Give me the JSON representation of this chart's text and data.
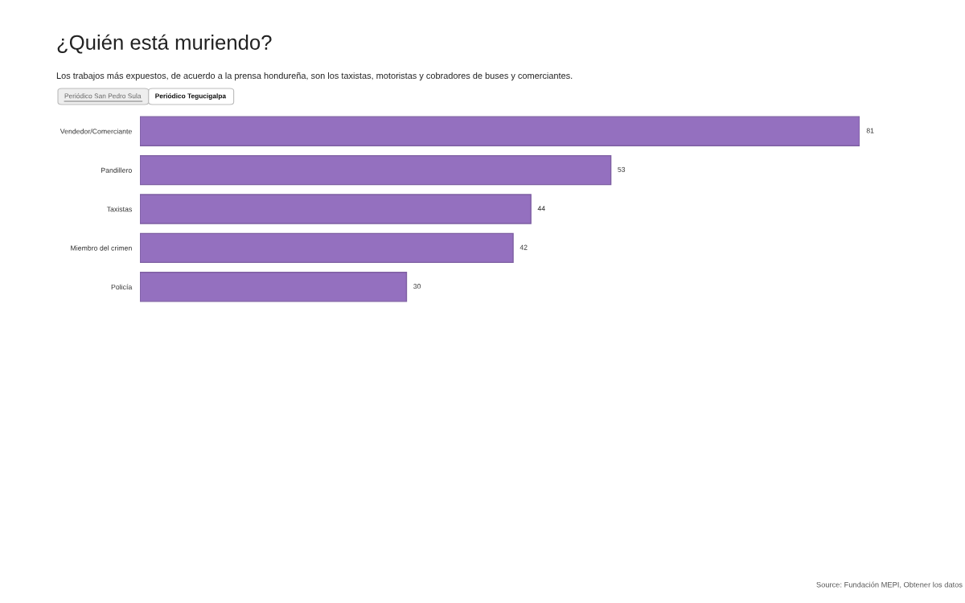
{
  "chart_data": {
    "type": "bar",
    "orientation": "horizontal",
    "title": "¿Quién está muriendo?",
    "subtitle": "Los trabajos más expuestos, de acuerdo a la prensa hondureña, son los taxistas, motoristas y cobradores de buses y comerciantes.",
    "categories": [
      "Vendedor/Comerciante",
      "Pandillero",
      "Taxistas",
      "Miembro del crimen",
      "Policía"
    ],
    "values": [
      81,
      53,
      44,
      42,
      30
    ],
    "color": "#9470bf",
    "data_labels": true,
    "tick_labels": "y",
    "grid": false,
    "annotations": [
      "Periódico San Pedro Sula",
      "Periódico Tegucigalpa",
      "Source: Fundación MEPI, Obtener los datos"
    ]
  }
}
